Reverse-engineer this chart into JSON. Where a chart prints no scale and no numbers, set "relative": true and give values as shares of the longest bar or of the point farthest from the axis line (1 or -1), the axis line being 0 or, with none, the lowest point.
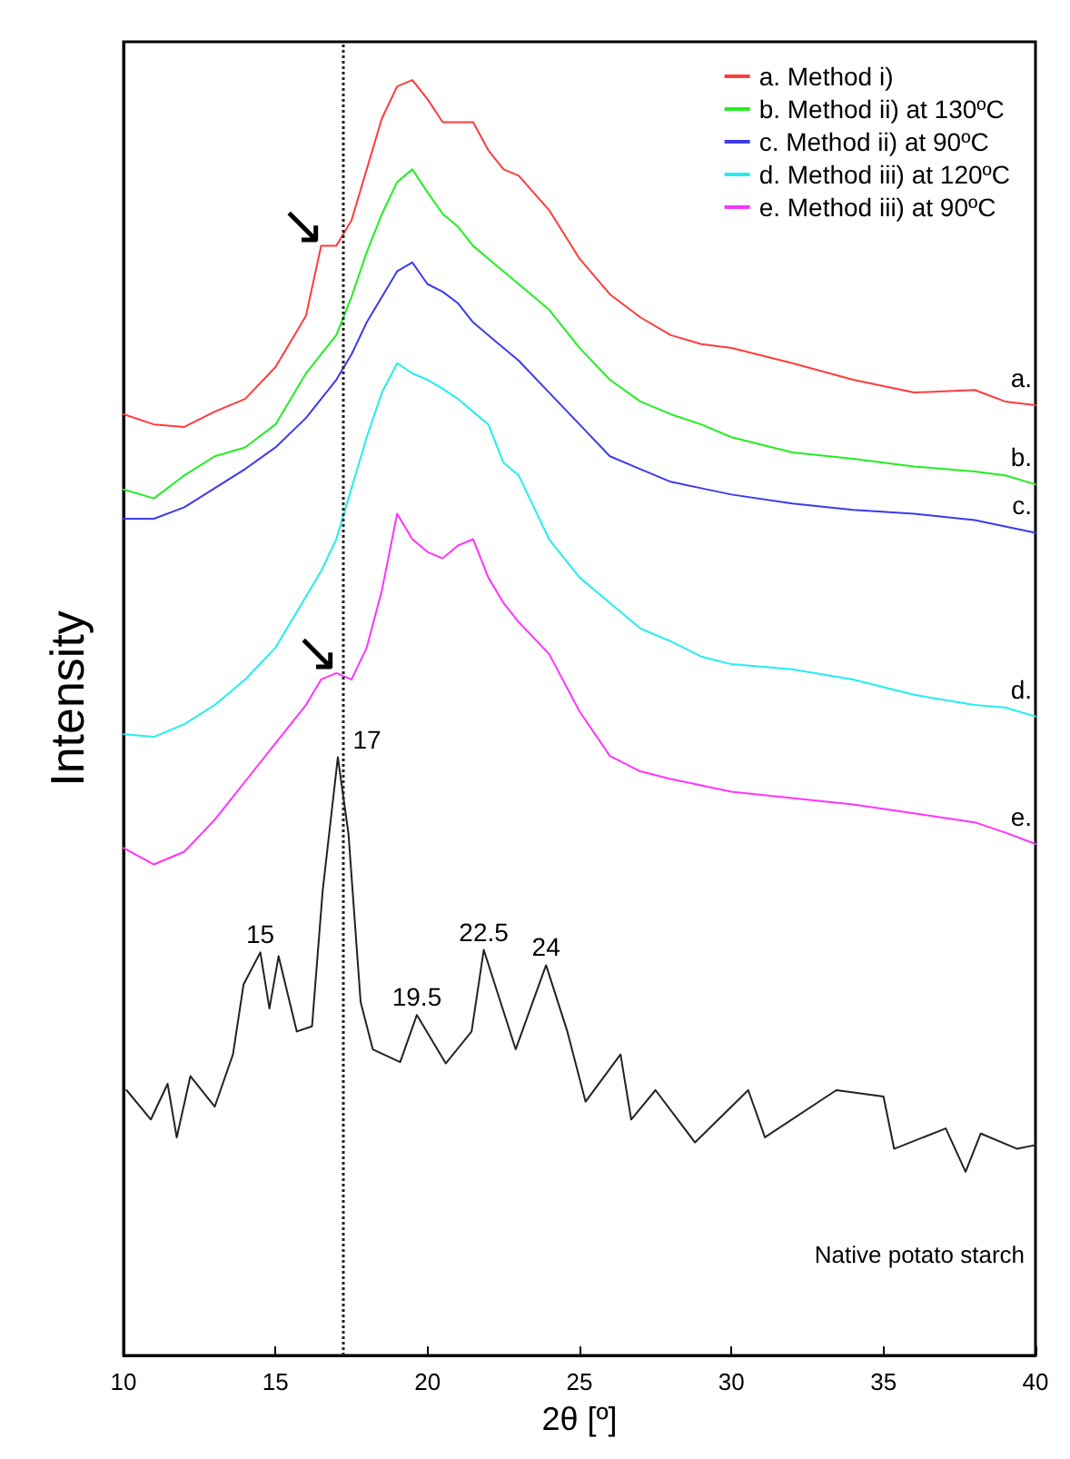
{
  "chart_data": {
    "type": "line",
    "relative": true,
    "xlabel": "2θ [º]",
    "ylabel": "Intensity",
    "xlim": [
      10,
      40
    ],
    "xticks": [
      10,
      15,
      20,
      25,
      30,
      35,
      40
    ],
    "grid": false,
    "legend": "top right",
    "marker": "none",
    "line_style": "solid",
    "x": [
      10,
      11,
      12,
      13,
      14,
      15,
      16,
      16.5,
      17,
      17.5,
      18,
      18.5,
      19,
      19.5,
      20,
      20.5,
      21,
      21.5,
      22,
      22.5,
      23,
      24,
      25,
      26,
      27,
      28,
      29,
      30,
      32,
      34,
      36,
      38,
      39,
      40
    ],
    "series": [
      {
        "name": "a. Method i)",
        "color": "#ff3b3b",
        "values": [
          0.738,
          0.73,
          0.728,
          0.74,
          0.75,
          0.775,
          0.815,
          0.87,
          0.87,
          0.89,
          0.93,
          0.97,
          0.995,
          1.0,
          0.985,
          0.967,
          0.967,
          0.967,
          0.945,
          0.93,
          0.925,
          0.898,
          0.86,
          0.832,
          0.814,
          0.8,
          0.793,
          0.79,
          0.778,
          0.765,
          0.755,
          0.757,
          0.748,
          0.745
        ]
      },
      {
        "name": "b. Method ii) at 130ºC",
        "color": "#22ee22",
        "values": [
          0.679,
          0.672,
          0.69,
          0.705,
          0.712,
          0.73,
          0.77,
          0.785,
          0.8,
          0.83,
          0.865,
          0.895,
          0.92,
          0.93,
          0.912,
          0.895,
          0.885,
          0.87,
          0.86,
          0.85,
          0.84,
          0.82,
          0.79,
          0.765,
          0.748,
          0.738,
          0.73,
          0.72,
          0.708,
          0.703,
          0.697,
          0.693,
          0.69,
          0.683
        ]
      },
      {
        "name": "c. Method ii) at 90ºC",
        "color": "#3a3aee",
        "values": [
          0.656,
          0.656,
          0.665,
          0.68,
          0.695,
          0.712,
          0.735,
          0.75,
          0.765,
          0.785,
          0.81,
          0.83,
          0.85,
          0.857,
          0.84,
          0.834,
          0.825,
          0.81,
          0.8,
          0.79,
          0.78,
          0.755,
          0.73,
          0.705,
          0.695,
          0.685,
          0.68,
          0.675,
          0.668,
          0.663,
          0.66,
          0.655,
          0.65,
          0.645
        ]
      },
      {
        "name": "d. Method iii) at 120ºC",
        "color": "#22eeee",
        "values": [
          0.487,
          0.485,
          0.495,
          0.51,
          0.53,
          0.555,
          0.595,
          0.615,
          0.64,
          0.68,
          0.72,
          0.755,
          0.778,
          0.77,
          0.765,
          0.758,
          0.75,
          0.74,
          0.73,
          0.7,
          0.69,
          0.64,
          0.61,
          0.59,
          0.57,
          0.56,
          0.548,
          0.542,
          0.538,
          0.53,
          0.518,
          0.51,
          0.508,
          0.501
        ]
      },
      {
        "name": "e. Method iii) at 90ºC",
        "color": "#ff33ff",
        "values": [
          0.398,
          0.385,
          0.395,
          0.42,
          0.45,
          0.48,
          0.51,
          0.53,
          0.535,
          0.53,
          0.555,
          0.6,
          0.66,
          0.64,
          0.63,
          0.625,
          0.635,
          0.64,
          0.61,
          0.59,
          0.575,
          0.55,
          0.505,
          0.47,
          0.458,
          0.452,
          0.447,
          0.442,
          0.437,
          0.432,
          0.425,
          0.418,
          0.41,
          0.401
        ]
      },
      {
        "color": "#222222",
        "x": [
          10.1,
          10.9,
          11.45,
          11.75,
          12.2,
          13.0,
          13.6,
          13.95,
          14.5,
          14.8,
          15.1,
          15.7,
          16.2,
          16.55,
          17.05,
          17.4,
          17.8,
          18.2,
          19.1,
          19.65,
          20.6,
          21.45,
          21.85,
          22.9,
          23.9,
          24.6,
          25.2,
          26.35,
          26.7,
          27.5,
          28.8,
          30.55,
          31.1,
          33.45,
          35.0,
          35.35,
          37.05,
          37.7,
          38.2,
          39.4,
          40
        ],
        "values": [
          0.208,
          0.185,
          0.213,
          0.171,
          0.219,
          0.195,
          0.236,
          0.291,
          0.316,
          0.272,
          0.313,
          0.254,
          0.258,
          0.364,
          0.469,
          0.409,
          0.277,
          0.24,
          0.23,
          0.267,
          0.229,
          0.254,
          0.318,
          0.24,
          0.306,
          0.254,
          0.199,
          0.236,
          0.185,
          0.208,
          0.167,
          0.208,
          0.171,
          0.208,
          0.203,
          0.162,
          0.178,
          0.144,
          0.174,
          0.162,
          0.165
        ]
      }
    ],
    "ref_lines": [
      {
        "axis": "x",
        "value": 17.2,
        "color": "#222222",
        "line_style": "dotted"
      }
    ],
    "annotations": [
      {
        "text": "a.",
        "x": 40,
        "y": 0.745
      },
      {
        "text": "b.",
        "x": 40,
        "y": 0.683
      },
      {
        "text": "c.",
        "x": 40,
        "y": 0.645
      },
      {
        "text": "d.",
        "x": 40,
        "y": 0.501
      },
      {
        "text": "e.",
        "x": 40,
        "y": 0.401
      },
      {
        "text": "15",
        "x": 14.5,
        "y": 0.316
      },
      {
        "text": "17",
        "x": 17.05,
        "y": 0.469
      },
      {
        "text": "19.5",
        "x": 19.65,
        "y": 0.267
      },
      {
        "text": "22.5",
        "x": 21.85,
        "y": 0.318
      },
      {
        "text": "24",
        "x": 23.9,
        "y": 0.306
      },
      "Native potato starch",
      {
        "text": "↘",
        "x": 16.5,
        "y": 0.87
      },
      {
        "text": "↘",
        "x": 17,
        "y": 0.535
      }
    ]
  }
}
